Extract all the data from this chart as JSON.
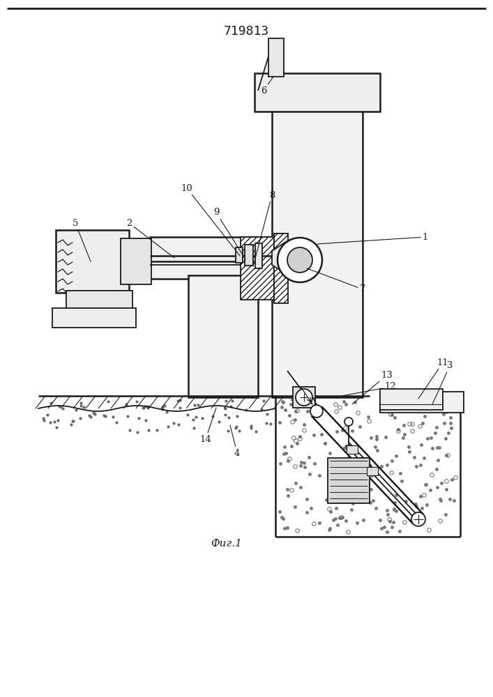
{
  "title": "719813",
  "fig_label": "Фиг.1",
  "bg_color": "#ffffff",
  "lc": "#1a1a1a",
  "fig_width": 7.07,
  "fig_height": 10.0
}
